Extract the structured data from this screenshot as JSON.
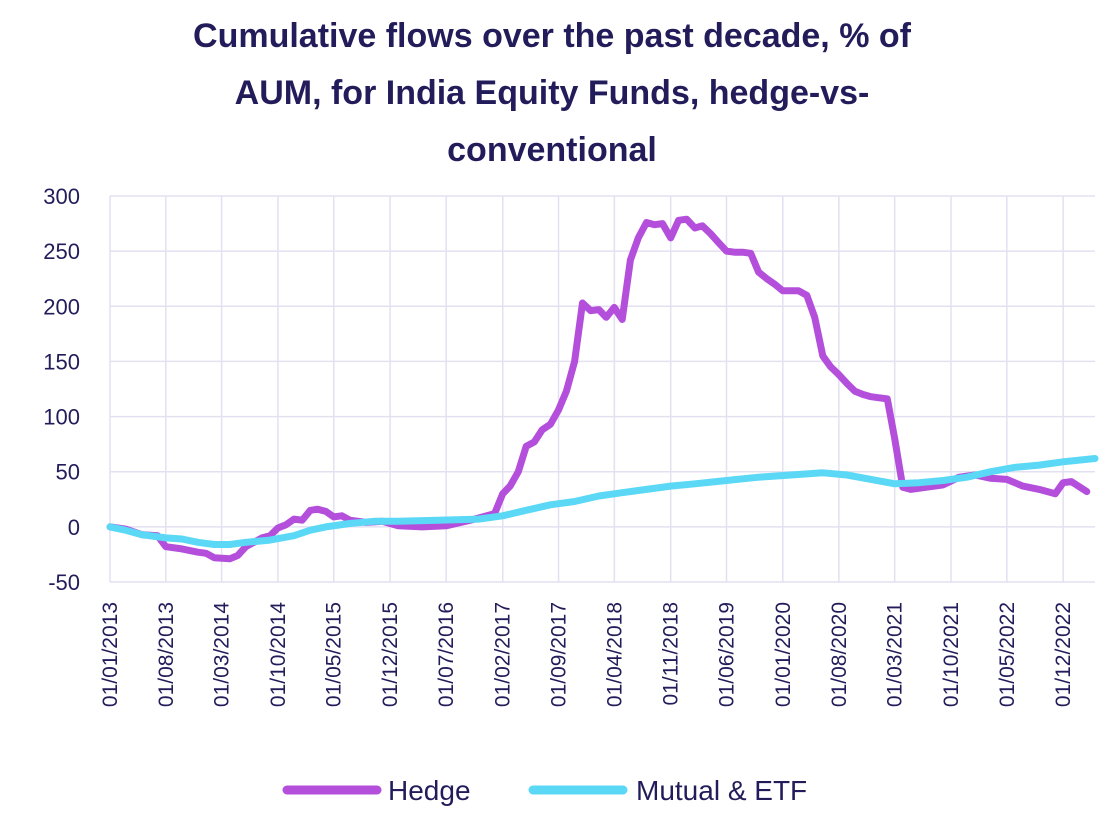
{
  "chart_data": {
    "type": "line",
    "title_lines": [
      "Cumulative flows over the past decade, % of",
      "AUM, for India Equity Funds, hedge-vs-",
      "conventional"
    ],
    "xlabel": "",
    "ylabel": "",
    "ylim": [
      -50,
      300
    ],
    "yticks": [
      300,
      250,
      200,
      150,
      100,
      50,
      0,
      -50
    ],
    "x_tick_labels": [
      "01/01/2013",
      "01/08/2013",
      "01/03/2014",
      "01/10/2014",
      "01/05/2015",
      "01/12/2015",
      "01/07/2016",
      "01/02/2017",
      "01/09/2017",
      "01/04/2018",
      "01/11/2018",
      "01/06/2019",
      "01/01/2020",
      "01/08/2020",
      "01/03/2021",
      "01/10/2021",
      "01/05/2022",
      "01/12/2022"
    ],
    "x_start": "01/01/2013",
    "x_end": "01/04/2023",
    "grid": true,
    "legend_position": "bottom",
    "series": [
      {
        "name": "Hedge",
        "color": "#b44fdc",
        "points": [
          [
            "01/01/2013",
            0
          ],
          [
            "01/03/2013",
            -2
          ],
          [
            "01/05/2013",
            -7
          ],
          [
            "01/07/2013",
            -8
          ],
          [
            "01/08/2013",
            -18
          ],
          [
            "01/10/2013",
            -20
          ],
          [
            "01/12/2013",
            -23
          ],
          [
            "01/01/2014",
            -24
          ],
          [
            "01/02/2014",
            -28
          ],
          [
            "01/04/2014",
            -29
          ],
          [
            "01/05/2014",
            -26
          ],
          [
            "01/06/2014",
            -18
          ],
          [
            "01/08/2014",
            -10
          ],
          [
            "01/09/2014",
            -8
          ],
          [
            "01/10/2014",
            -1
          ],
          [
            "01/11/2014",
            2
          ],
          [
            "01/12/2014",
            7
          ],
          [
            "01/01/2015",
            6
          ],
          [
            "01/02/2015",
            15
          ],
          [
            "01/03/2015",
            16
          ],
          [
            "01/04/2015",
            14
          ],
          [
            "01/05/2015",
            9
          ],
          [
            "01/06/2015",
            10
          ],
          [
            "01/07/2015",
            6
          ],
          [
            "01/09/2015",
            4
          ],
          [
            "01/11/2015",
            5
          ],
          [
            "01/01/2016",
            1
          ],
          [
            "01/04/2016",
            0
          ],
          [
            "01/07/2016",
            1
          ],
          [
            "01/10/2016",
            6
          ],
          [
            "01/01/2017",
            12
          ],
          [
            "01/02/2017",
            30
          ],
          [
            "01/03/2017",
            37
          ],
          [
            "01/04/2017",
            50
          ],
          [
            "01/05/2017",
            73
          ],
          [
            "01/06/2017",
            77
          ],
          [
            "01/07/2017",
            88
          ],
          [
            "01/08/2017",
            93
          ],
          [
            "01/09/2017",
            106
          ],
          [
            "01/10/2017",
            123
          ],
          [
            "01/11/2017",
            150
          ],
          [
            "01/12/2017",
            203
          ],
          [
            "01/01/2018",
            196
          ],
          [
            "01/02/2018",
            197
          ],
          [
            "01/03/2018",
            190
          ],
          [
            "01/04/2018",
            199
          ],
          [
            "01/05/2018",
            188
          ],
          [
            "01/06/2018",
            242
          ],
          [
            "01/07/2018",
            262
          ],
          [
            "01/08/2018",
            276
          ],
          [
            "01/09/2018",
            274
          ],
          [
            "01/10/2018",
            275
          ],
          [
            "01/11/2018",
            262
          ],
          [
            "01/12/2018",
            278
          ],
          [
            "01/01/2019",
            279
          ],
          [
            "01/02/2019",
            271
          ],
          [
            "01/03/2019",
            273
          ],
          [
            "01/04/2019",
            266
          ],
          [
            "01/05/2019",
            258
          ],
          [
            "01/06/2019",
            250
          ],
          [
            "01/07/2019",
            249
          ],
          [
            "01/08/2019",
            249
          ],
          [
            "01/09/2019",
            248
          ],
          [
            "01/10/2019",
            231
          ],
          [
            "01/11/2019",
            225
          ],
          [
            "01/12/2019",
            220
          ],
          [
            "01/01/2020",
            214
          ],
          [
            "01/02/2020",
            214
          ],
          [
            "01/03/2020",
            214
          ],
          [
            "01/04/2020",
            210
          ],
          [
            "01/05/2020",
            190
          ],
          [
            "01/06/2020",
            155
          ],
          [
            "01/07/2020",
            145
          ],
          [
            "01/08/2020",
            138
          ],
          [
            "01/09/2020",
            130
          ],
          [
            "01/10/2020",
            123
          ],
          [
            "01/11/2020",
            120
          ],
          [
            "01/12/2020",
            118
          ],
          [
            "01/01/2021",
            117
          ],
          [
            "01/02/2021",
            116
          ],
          [
            "01/03/2021",
            80
          ],
          [
            "01/04/2021",
            36
          ],
          [
            "01/05/2021",
            34
          ],
          [
            "01/07/2021",
            36
          ],
          [
            "01/09/2021",
            38
          ],
          [
            "01/11/2021",
            45
          ],
          [
            "01/01/2022",
            47
          ],
          [
            "01/03/2022",
            44
          ],
          [
            "01/05/2022",
            43
          ],
          [
            "01/07/2022",
            37
          ],
          [
            "01/09/2022",
            34
          ],
          [
            "01/11/2022",
            30
          ],
          [
            "01/12/2022",
            40
          ],
          [
            "01/01/2023",
            41
          ],
          [
            "01/03/2023",
            32
          ]
        ]
      },
      {
        "name": "Mutual & ETF",
        "color": "#5ad8f5",
        "points": [
          [
            "01/01/2013",
            0
          ],
          [
            "01/03/2013",
            -3
          ],
          [
            "01/05/2013",
            -7
          ],
          [
            "01/08/2013",
            -10
          ],
          [
            "01/10/2013",
            -11
          ],
          [
            "01/12/2013",
            -14
          ],
          [
            "01/02/2014",
            -16
          ],
          [
            "01/04/2014",
            -16
          ],
          [
            "01/06/2014",
            -14
          ],
          [
            "01/09/2014",
            -12
          ],
          [
            "01/12/2014",
            -8
          ],
          [
            "01/02/2015",
            -3
          ],
          [
            "01/04/2015",
            0
          ],
          [
            "01/07/2015",
            3
          ],
          [
            "01/10/2015",
            5
          ],
          [
            "01/01/2016",
            5
          ],
          [
            "01/06/2016",
            6
          ],
          [
            "01/11/2016",
            7
          ],
          [
            "01/02/2017",
            10
          ],
          [
            "01/05/2017",
            15
          ],
          [
            "01/08/2017",
            20
          ],
          [
            "01/11/2017",
            23
          ],
          [
            "01/02/2018",
            28
          ],
          [
            "01/05/2018",
            31
          ],
          [
            "01/08/2018",
            34
          ],
          [
            "01/11/2018",
            37
          ],
          [
            "01/02/2019",
            39
          ],
          [
            "01/06/2019",
            42
          ],
          [
            "01/10/2019",
            45
          ],
          [
            "01/02/2020",
            47
          ],
          [
            "01/06/2020",
            49
          ],
          [
            "01/09/2020",
            47
          ],
          [
            "01/12/2020",
            43
          ],
          [
            "01/03/2021",
            39
          ],
          [
            "01/06/2021",
            40
          ],
          [
            "01/09/2021",
            42
          ],
          [
            "01/12/2021",
            45
          ],
          [
            "01/03/2022",
            50
          ],
          [
            "01/06/2022",
            54
          ],
          [
            "01/09/2022",
            56
          ],
          [
            "01/12/2022",
            59
          ],
          [
            "01/04/2023",
            62
          ]
        ]
      }
    ]
  }
}
